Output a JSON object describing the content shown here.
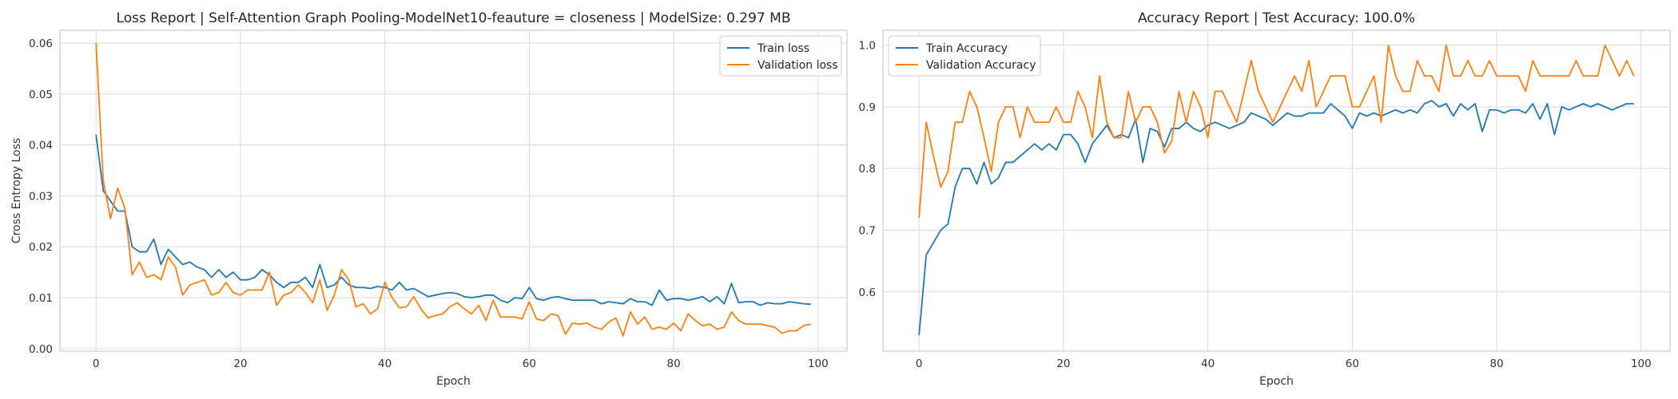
{
  "colors": {
    "train": "#1f77b4",
    "validation": "#ff7f0e",
    "grid": "#d9d9d9",
    "axis_frame": "#cccccc"
  },
  "chart_data": [
    {
      "type": "line",
      "title": "Loss Report | Self-Attention Graph Pooling-ModelNet10-feauture = closeness | ModelSize: 0.297 MB",
      "xlabel": "Epoch",
      "ylabel": "Cross Entropy Loss",
      "xlim": [
        -5,
        104
      ],
      "ylim": [
        -0.0005,
        0.0625
      ],
      "xticks": [
        0,
        20,
        40,
        60,
        80,
        100
      ],
      "yticks": [
        0.0,
        0.01,
        0.02,
        0.03,
        0.04,
        0.05,
        0.06
      ],
      "ytick_labels": [
        "0.00",
        "0.01",
        "0.02",
        "0.03",
        "0.04",
        "0.05",
        "0.06"
      ],
      "grid": true,
      "legend_position": "top-right",
      "series": [
        {
          "name": "Train loss",
          "color": "#1f77b4",
          "values": [
            0.042,
            0.031,
            0.029,
            0.027,
            0.027,
            0.02,
            0.019,
            0.019,
            0.0215,
            0.0165,
            0.0195,
            0.018,
            0.0165,
            0.017,
            0.016,
            0.0155,
            0.014,
            0.0155,
            0.014,
            0.015,
            0.0135,
            0.0135,
            0.014,
            0.0155,
            0.0145,
            0.013,
            0.012,
            0.013,
            0.013,
            0.014,
            0.012,
            0.0165,
            0.012,
            0.0125,
            0.014,
            0.0125,
            0.012,
            0.012,
            0.0118,
            0.0122,
            0.012,
            0.0115,
            0.013,
            0.0115,
            0.0118,
            0.011,
            0.0102,
            0.0105,
            0.0108,
            0.011,
            0.0108,
            0.0102,
            0.01,
            0.0102,
            0.0105,
            0.0105,
            0.0095,
            0.009,
            0.01,
            0.0098,
            0.012,
            0.0098,
            0.0095,
            0.01,
            0.0102,
            0.0098,
            0.0095,
            0.0095,
            0.0095,
            0.0095,
            0.0088,
            0.0092,
            0.009,
            0.0088,
            0.0098,
            0.0092,
            0.0092,
            0.0085,
            0.0115,
            0.0095,
            0.0098,
            0.0098,
            0.0095,
            0.0098,
            0.0102,
            0.0092,
            0.0102,
            0.0088,
            0.0128,
            0.009,
            0.0092,
            0.0092,
            0.0085,
            0.009,
            0.0088,
            0.0088,
            0.0092,
            0.009,
            0.0088,
            0.0087
          ]
        },
        {
          "name": "Validation loss",
          "color": "#ff7f0e",
          "values": [
            0.06,
            0.033,
            0.0255,
            0.0315,
            0.0275,
            0.0145,
            0.017,
            0.014,
            0.0145,
            0.0135,
            0.018,
            0.016,
            0.0105,
            0.0125,
            0.013,
            0.0135,
            0.0105,
            0.011,
            0.013,
            0.011,
            0.0105,
            0.0115,
            0.0115,
            0.0115,
            0.015,
            0.0085,
            0.0105,
            0.011,
            0.0125,
            0.011,
            0.009,
            0.0135,
            0.0075,
            0.0105,
            0.0155,
            0.0135,
            0.0082,
            0.0088,
            0.0068,
            0.0078,
            0.013,
            0.01,
            0.008,
            0.0082,
            0.0102,
            0.0078,
            0.006,
            0.0065,
            0.0068,
            0.0082,
            0.009,
            0.0078,
            0.0068,
            0.0085,
            0.0055,
            0.0095,
            0.0062,
            0.0062,
            0.0062,
            0.0058,
            0.0092,
            0.0058,
            0.0055,
            0.0068,
            0.0065,
            0.0028,
            0.005,
            0.0048,
            0.005,
            0.0042,
            0.0038,
            0.0052,
            0.006,
            0.0025,
            0.0072,
            0.0048,
            0.0062,
            0.0038,
            0.0042,
            0.0038,
            0.005,
            0.0035,
            0.0068,
            0.0055,
            0.0045,
            0.0048,
            0.0038,
            0.0042,
            0.0072,
            0.0055,
            0.0048,
            0.0048,
            0.0048,
            0.0045,
            0.0042,
            0.003,
            0.0035,
            0.0035,
            0.0045,
            0.0048
          ]
        }
      ]
    },
    {
      "type": "line",
      "title": "Accuracy Report | Test Accuracy: 100.0%",
      "xlabel": "Epoch",
      "ylabel": "",
      "xlim": [
        -5,
        104
      ],
      "ylim": [
        0.504,
        1.024
      ],
      "xticks": [
        0,
        20,
        40,
        60,
        80,
        100
      ],
      "yticks": [
        0.6,
        0.7,
        0.8,
        0.9,
        1.0
      ],
      "ytick_labels": [
        "0.6",
        "0.7",
        "0.8",
        "0.9",
        "1.0"
      ],
      "grid": true,
      "legend_position": "top-left",
      "series": [
        {
          "name": "Train Accuracy",
          "color": "#1f77b4",
          "values": [
            0.53,
            0.66,
            0.68,
            0.7,
            0.71,
            0.77,
            0.8,
            0.8,
            0.775,
            0.81,
            0.775,
            0.785,
            0.81,
            0.81,
            0.82,
            0.83,
            0.84,
            0.83,
            0.84,
            0.83,
            0.855,
            0.855,
            0.84,
            0.81,
            0.84,
            0.855,
            0.87,
            0.85,
            0.855,
            0.85,
            0.88,
            0.81,
            0.865,
            0.86,
            0.835,
            0.865,
            0.865,
            0.875,
            0.865,
            0.86,
            0.87,
            0.875,
            0.87,
            0.865,
            0.87,
            0.875,
            0.89,
            0.885,
            0.88,
            0.87,
            0.88,
            0.89,
            0.885,
            0.885,
            0.89,
            0.89,
            0.89,
            0.905,
            0.895,
            0.885,
            0.865,
            0.89,
            0.885,
            0.89,
            0.885,
            0.89,
            0.895,
            0.89,
            0.895,
            0.89,
            0.905,
            0.91,
            0.9,
            0.905,
            0.885,
            0.905,
            0.895,
            0.905,
            0.86,
            0.895,
            0.895,
            0.89,
            0.895,
            0.895,
            0.89,
            0.905,
            0.88,
            0.905,
            0.855,
            0.9,
            0.895,
            0.9,
            0.905,
            0.9,
            0.905,
            0.9,
            0.895,
            0.9,
            0.905,
            0.905
          ]
        },
        {
          "name": "Validation Accuracy",
          "color": "#ff7f0e",
          "values": [
            0.72,
            0.875,
            0.82,
            0.77,
            0.795,
            0.875,
            0.875,
            0.925,
            0.9,
            0.85,
            0.795,
            0.875,
            0.9,
            0.9,
            0.85,
            0.9,
            0.875,
            0.875,
            0.875,
            0.9,
            0.875,
            0.875,
            0.925,
            0.9,
            0.85,
            0.95,
            0.875,
            0.85,
            0.85,
            0.925,
            0.875,
            0.9,
            0.9,
            0.875,
            0.825,
            0.845,
            0.925,
            0.875,
            0.925,
            0.9,
            0.85,
            0.925,
            0.925,
            0.9,
            0.875,
            0.925,
            0.975,
            0.925,
            0.9,
            0.875,
            0.9,
            0.925,
            0.95,
            0.925,
            0.975,
            0.9,
            0.925,
            0.95,
            0.95,
            0.95,
            0.9,
            0.9,
            0.925,
            0.95,
            0.875,
            1.0,
            0.95,
            0.925,
            0.925,
            0.975,
            0.95,
            0.95,
            0.925,
            1.0,
            0.95,
            0.95,
            0.975,
            0.95,
            0.95,
            0.975,
            0.95,
            0.95,
            0.95,
            0.95,
            0.925,
            0.975,
            0.95,
            0.95,
            0.95,
            0.95,
            0.95,
            0.975,
            0.95,
            0.95,
            0.95,
            1.0,
            0.975,
            0.95,
            0.975,
            0.95
          ]
        }
      ]
    }
  ]
}
